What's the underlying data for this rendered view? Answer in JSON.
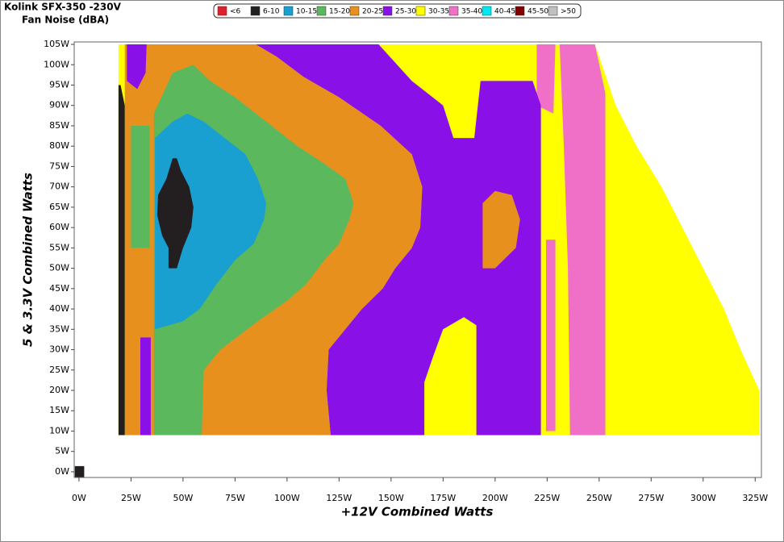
{
  "chart_data": {
    "type": "contour",
    "title": "Kolink SFX-350 -230V",
    "subtitle": "Fan Noise (dBA)",
    "x_label": "+12V Combined Watts",
    "y_label": "5 & 3.3V Combined Watts",
    "xlim": [
      -2.3,
      328
    ],
    "ylim": [
      -1.4,
      105.6
    ],
    "xticks": [
      {
        "value": 0,
        "label": "0W"
      },
      {
        "value": 25,
        "label": "25W"
      },
      {
        "value": 50,
        "label": "50W"
      },
      {
        "value": 75,
        "label": "75W"
      },
      {
        "value": 100,
        "label": "100W"
      },
      {
        "value": 125,
        "label": "125W"
      },
      {
        "value": 150,
        "label": "150W"
      },
      {
        "value": 175,
        "label": "175W"
      },
      {
        "value": 200,
        "label": "200W"
      },
      {
        "value": 225,
        "label": "225W"
      },
      {
        "value": 250,
        "label": "250W"
      },
      {
        "value": 275,
        "label": "275W"
      },
      {
        "value": 300,
        "label": "300W"
      },
      {
        "value": 325,
        "label": "325W"
      }
    ],
    "yticks": [
      {
        "value": 0,
        "label": "0W"
      },
      {
        "value": 5,
        "label": "5W"
      },
      {
        "value": 10,
        "label": "10W"
      },
      {
        "value": 15,
        "label": "15W"
      },
      {
        "value": 20,
        "label": "20W"
      },
      {
        "value": 25,
        "label": "25W"
      },
      {
        "value": 30,
        "label": "30W"
      },
      {
        "value": 35,
        "label": "35W"
      },
      {
        "value": 40,
        "label": "40W"
      },
      {
        "value": 45,
        "label": "45W"
      },
      {
        "value": 50,
        "label": "50W"
      },
      {
        "value": 55,
        "label": "55W"
      },
      {
        "value": 60,
        "label": "60W"
      },
      {
        "value": 65,
        "label": "65W"
      },
      {
        "value": 70,
        "label": "70W"
      },
      {
        "value": 75,
        "label": "75W"
      },
      {
        "value": 80,
        "label": "80W"
      },
      {
        "value": 85,
        "label": "85W"
      },
      {
        "value": 90,
        "label": "90W"
      },
      {
        "value": 95,
        "label": "95W"
      },
      {
        "value": 100,
        "label": "100W"
      },
      {
        "value": 105,
        "label": "105W"
      }
    ],
    "series": [
      {
        "name": "<6",
        "color": "#e0202a"
      },
      {
        "name": "6-10",
        "color": "#231f20"
      },
      {
        "name": "10-15",
        "color": "#19a0d0"
      },
      {
        "name": "15-20",
        "color": "#5cb85c"
      },
      {
        "name": "20-25",
        "color": "#e8901e"
      },
      {
        "name": "25-30",
        "color": "#8a10e8"
      },
      {
        "name": "30-35",
        "color": "#ffff00"
      },
      {
        "name": "35-40",
        "color": "#f070c8"
      },
      {
        "name": "40-45",
        "color": "#00e8f0"
      },
      {
        "name": "45-50",
        "color": "#800000"
      },
      {
        "name": ">50",
        "color": "#c0c0c0"
      }
    ],
    "layers": [
      {
        "level": "30-35",
        "points": [
          [
            19,
            9
          ],
          [
            327,
            9
          ],
          [
            327,
            20
          ],
          [
            318,
            30
          ],
          [
            310,
            40
          ],
          [
            300,
            50
          ],
          [
            290,
            60
          ],
          [
            280,
            70
          ],
          [
            268,
            80
          ],
          [
            258,
            90
          ],
          [
            248,
            105
          ],
          [
            19,
            105
          ]
        ]
      },
      {
        "level": "35-40",
        "points": [
          [
            236,
            9
          ],
          [
            253,
            9
          ],
          [
            253,
            93
          ],
          [
            248,
            105
          ],
          [
            231,
            105
          ],
          [
            233,
            80
          ],
          [
            235,
            50
          ]
        ]
      },
      {
        "level": "35-40",
        "points": [
          [
            220,
            105
          ],
          [
            229,
            105
          ],
          [
            228,
            88
          ],
          [
            220,
            90
          ]
        ]
      },
      {
        "level": "35-40",
        "points": [
          [
            224.5,
            10
          ],
          [
            229,
            10
          ],
          [
            229,
            57
          ],
          [
            224.5,
            57
          ]
        ]
      },
      {
        "level": "20-25",
        "points": [
          [
            22,
            105
          ],
          [
            85,
            105
          ],
          [
            95,
            102
          ],
          [
            108,
            97
          ],
          [
            125,
            92
          ],
          [
            145,
            85
          ],
          [
            160,
            78
          ],
          [
            165,
            70
          ],
          [
            164,
            60
          ],
          [
            160,
            55
          ],
          [
            152,
            50
          ],
          [
            146,
            45
          ],
          [
            136,
            40
          ],
          [
            128,
            35
          ],
          [
            120,
            30
          ],
          [
            119,
            20
          ],
          [
            121,
            9
          ],
          [
            22,
            9
          ]
        ]
      },
      {
        "level": "25-30",
        "points": [
          [
            85,
            105
          ],
          [
            144,
            105
          ],
          [
            160,
            96
          ],
          [
            175,
            90
          ],
          [
            180,
            82
          ],
          [
            190,
            82
          ],
          [
            193,
            96
          ],
          [
            218,
            96
          ],
          [
            222,
            90
          ],
          [
            222,
            9
          ],
          [
            121,
            9
          ],
          [
            119,
            20
          ],
          [
            120,
            30
          ],
          [
            128,
            35
          ],
          [
            136,
            40
          ],
          [
            146,
            45
          ],
          [
            152,
            50
          ],
          [
            160,
            55
          ],
          [
            164,
            60
          ],
          [
            165,
            70
          ],
          [
            160,
            78
          ],
          [
            145,
            85
          ],
          [
            125,
            92
          ],
          [
            108,
            97
          ],
          [
            95,
            102
          ]
        ]
      },
      {
        "level": "30-35",
        "points": [
          [
            166,
            9
          ],
          [
            191,
            9
          ],
          [
            191,
            36
          ],
          [
            185,
            38
          ],
          [
            175,
            35
          ],
          [
            170,
            28
          ],
          [
            166,
            22
          ]
        ]
      },
      {
        "level": "20-25",
        "points": [
          [
            194,
            50
          ],
          [
            200,
            50
          ],
          [
            210,
            55
          ],
          [
            212,
            62
          ],
          [
            208,
            68
          ],
          [
            200,
            69
          ],
          [
            194,
            66
          ]
        ]
      },
      {
        "level": "15-20",
        "points": [
          [
            36,
            9
          ],
          [
            59,
            9
          ],
          [
            60,
            25
          ],
          [
            68,
            30
          ],
          [
            86,
            37
          ],
          [
            100,
            42
          ],
          [
            109,
            46
          ],
          [
            118,
            52
          ],
          [
            125,
            56
          ],
          [
            130,
            62
          ],
          [
            132,
            66
          ],
          [
            128,
            72
          ],
          [
            117,
            76
          ],
          [
            105,
            80
          ],
          [
            90,
            86
          ],
          [
            75,
            92
          ],
          [
            63,
            96
          ],
          [
            55,
            100
          ],
          [
            45,
            98
          ],
          [
            36,
            88
          ]
        ]
      },
      {
        "level": "15-20",
        "points": [
          [
            25,
            85
          ],
          [
            34,
            85
          ],
          [
            34,
            55
          ],
          [
            25,
            55
          ]
        ]
      },
      {
        "level": "10-15",
        "points": [
          [
            36.5,
            35
          ],
          [
            50,
            37
          ],
          [
            58,
            40
          ],
          [
            66,
            46
          ],
          [
            75,
            52
          ],
          [
            84,
            56
          ],
          [
            89,
            62
          ],
          [
            90,
            66
          ],
          [
            86,
            72
          ],
          [
            80,
            78
          ],
          [
            70,
            82
          ],
          [
            60,
            86
          ],
          [
            52,
            88
          ],
          [
            45,
            86
          ],
          [
            36.5,
            82
          ]
        ]
      },
      {
        "level": "6-10",
        "points": [
          [
            43,
            50
          ],
          [
            47,
            50
          ],
          [
            50,
            55
          ],
          [
            54,
            60
          ],
          [
            55,
            65
          ],
          [
            53,
            70
          ],
          [
            49,
            74
          ],
          [
            47,
            77
          ],
          [
            45,
            77
          ],
          [
            42,
            72
          ],
          [
            38,
            68
          ],
          [
            37.6,
            63
          ],
          [
            40,
            58
          ],
          [
            43,
            55
          ]
        ]
      },
      {
        "level": "6-10",
        "points": [
          [
            19,
            9
          ],
          [
            22,
            9
          ],
          [
            22,
            90
          ],
          [
            20,
            95
          ],
          [
            19,
            95
          ]
        ]
      },
      {
        "level": "6-10",
        "points": [
          [
            -2,
            -1.4
          ],
          [
            2.5,
            -1.4
          ],
          [
            2.5,
            1.4
          ],
          [
            -2,
            1.4
          ]
        ]
      },
      {
        "level": "25-30",
        "points": [
          [
            23,
            105
          ],
          [
            32.5,
            105
          ],
          [
            32,
            98
          ],
          [
            28,
            94
          ],
          [
            23,
            96
          ]
        ]
      },
      {
        "level": "25-30",
        "points": [
          [
            29.5,
            9
          ],
          [
            34.5,
            9
          ],
          [
            34.5,
            33
          ],
          [
            29.5,
            33
          ]
        ]
      }
    ]
  }
}
